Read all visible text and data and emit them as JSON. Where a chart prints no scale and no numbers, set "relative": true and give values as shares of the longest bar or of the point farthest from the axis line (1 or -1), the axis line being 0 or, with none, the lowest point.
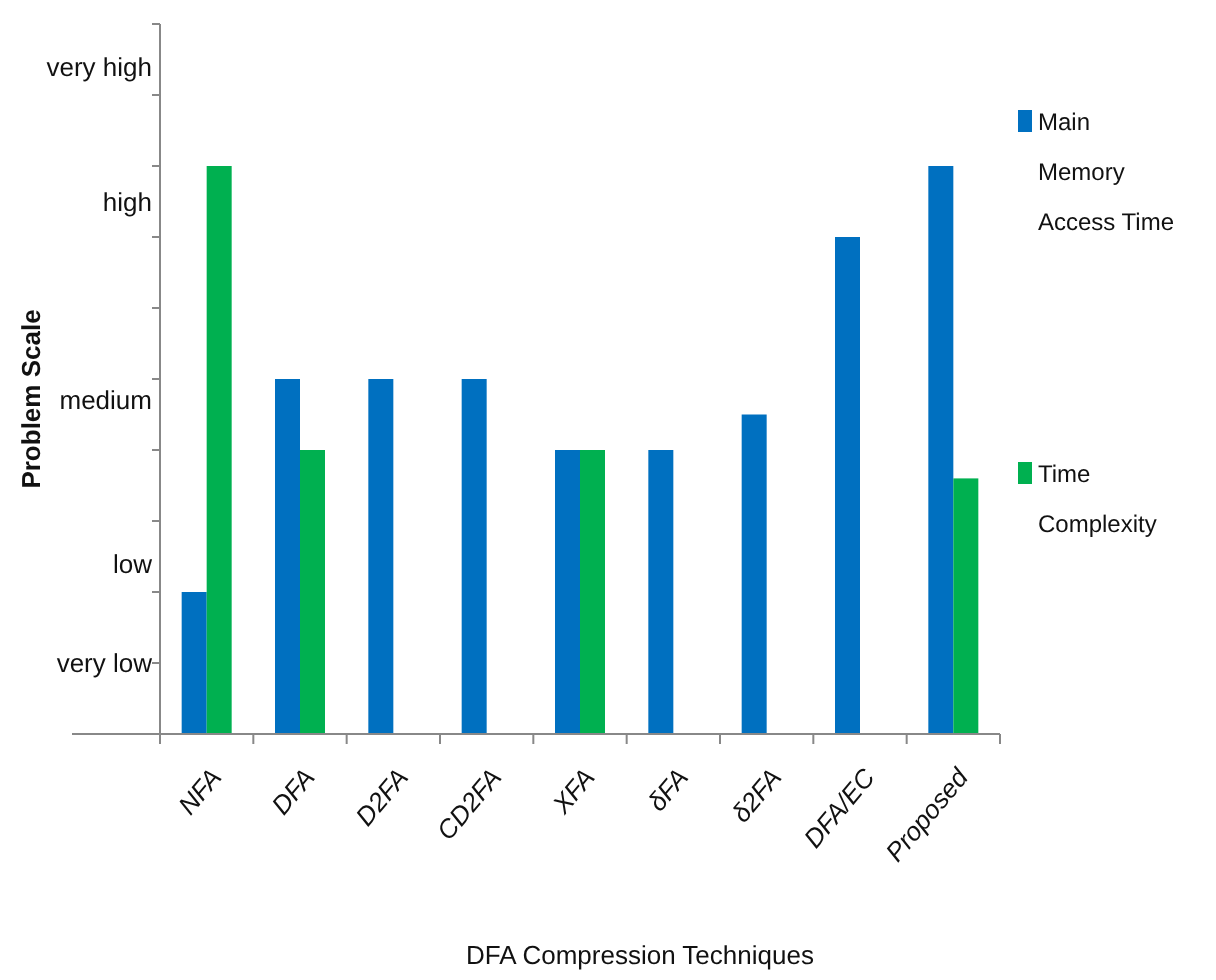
{
  "chart_data": {
    "type": "bar",
    "xlabel": "DFA Compression Techniques",
    "ylabel": "Problem Scale",
    "relative": true,
    "categories": [
      "NFA",
      "DFA",
      "D2FA",
      "CD2FA",
      "XFA",
      "δFA",
      "δ2FA",
      "DFA/EC",
      "Proposed"
    ],
    "series": [
      {
        "name": "Main Memory Access Time",
        "color": "#0070c0",
        "values": [
          0.25,
          0.625,
          0.625,
          0.625,
          0.5,
          0.5,
          0.5625,
          0.875,
          1
        ]
      },
      {
        "name": "Time Complexity",
        "color": "#00b050",
        "values": [
          1,
          0.5,
          null,
          null,
          0.5,
          null,
          null,
          null,
          0.45
        ]
      }
    ],
    "annotations": [
      "very low",
      "low",
      "medium",
      "high",
      "very high"
    ],
    "legend": "right"
  }
}
